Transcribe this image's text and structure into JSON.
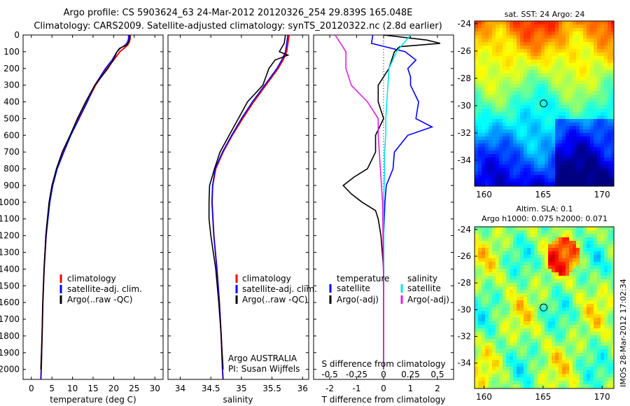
{
  "title_line1": "Argo profile: CS 5903624_63 24-Mar-2012 20120326_254 29.839S 165.048E",
  "title_line2": "Climatology: CARS2009. Satellite-adjusted climatology: synTS_20120322.nc (2.8d earlier)",
  "colors": {
    "climatology": "#ff0000",
    "satellite": "#0000ff",
    "argo": "#000000",
    "sal_satellite": "#00e5ee",
    "sal_argo": "#e020e0"
  },
  "depth_axis": {
    "ylim": [
      0,
      2060
    ],
    "ticks": [
      0,
      100,
      200,
      300,
      400,
      500,
      600,
      700,
      800,
      900,
      1000,
      1100,
      1200,
      1300,
      1400,
      1500,
      1600,
      1700,
      1800,
      1900,
      2000
    ],
    "tick_labels": [
      "0",
      "100",
      "200",
      "300",
      "400",
      "500",
      "600",
      "700",
      "800",
      "900",
      "1000",
      "1100",
      "1200",
      "1300",
      "1400",
      "1500",
      "1600",
      "1700",
      "1800",
      "1900",
      "2000"
    ]
  },
  "chart_data": [
    {
      "type": "line",
      "xlabel": "temperature (deg C)",
      "xlim": [
        -2,
        32
      ],
      "xticks": [
        0,
        5,
        10,
        15,
        20,
        25,
        30
      ],
      "xtick_labels": [
        "0",
        "5",
        "10",
        "15",
        "20",
        "25",
        "30"
      ],
      "legend": {
        "placement": "bottom-left",
        "entries": [
          "climatology",
          "satellite-adj. clim.",
          "Argo(..raw -QC)"
        ]
      },
      "series": [
        {
          "name": "climatology",
          "color": "#ff0000",
          "depth": [
            0,
            20,
            40,
            60,
            80,
            100,
            150,
            200,
            300,
            400,
            500,
            600,
            700,
            800,
            900,
            1000,
            1200,
            1400,
            1600,
            1800,
            2000,
            2060
          ],
          "values": [
            24,
            24,
            23.8,
            23.4,
            22.5,
            21.5,
            20,
            18.3,
            15.6,
            13.5,
            11.4,
            9.5,
            7.8,
            6.2,
            5.1,
            4.4,
            3.6,
            3.1,
            2.8,
            2.6,
            2.4,
            2.3
          ]
        },
        {
          "name": "satellite-adj. clim.",
          "color": "#0000ff",
          "depth": [
            0,
            20,
            40,
            60,
            80,
            100,
            150,
            200,
            300,
            400,
            500,
            600,
            700,
            800,
            900,
            1000,
            1200,
            1400,
            1600,
            1800,
            2000,
            2060
          ],
          "values": [
            23.6,
            23.6,
            23.4,
            22.8,
            21.6,
            20.8,
            19.6,
            18,
            15.4,
            13.6,
            11.6,
            9.6,
            7.9,
            6.3,
            5.2,
            4.5,
            3.6,
            3.1,
            2.8,
            2.6,
            2.4,
            2.3
          ]
        },
        {
          "name": "Argo(..raw -QC)",
          "color": "#000000",
          "depth": [
            0,
            20,
            40,
            60,
            80,
            100,
            150,
            200,
            300,
            400,
            500,
            600,
            700,
            800,
            900,
            1000,
            1100,
            1200,
            1400,
            1600,
            1800,
            2000
          ],
          "values": [
            23.9,
            23.9,
            23.7,
            23.2,
            21.4,
            20.8,
            19.9,
            18.6,
            15.4,
            13.2,
            11.2,
            9.4,
            7.5,
            6.1,
            5,
            4.3,
            3.9,
            3.5,
            3.1,
            2.8,
            2.6,
            2.3
          ]
        }
      ]
    },
    {
      "type": "line",
      "xlabel": "salinity",
      "xlim": [
        33.8,
        36.1
      ],
      "xticks": [
        34,
        34.5,
        35,
        35.5,
        36
      ],
      "xtick_labels": [
        "34",
        "34.5",
        "35",
        "35.5",
        "36"
      ],
      "legend": {
        "placement": "bottom-right",
        "entries": [
          "climatology",
          "satellite-adj. clim.",
          "Argo(..raw -QC)"
        ]
      },
      "annotation": [
        "Argo AUSTRALIA",
        "PI: Susan Wijffels"
      ],
      "series": [
        {
          "name": "climatology",
          "color": "#ff0000",
          "depth": [
            0,
            50,
            100,
            150,
            200,
            300,
            400,
            500,
            600,
            700,
            800,
            900,
            1000,
            1200,
            1400,
            1600,
            1800,
            2000,
            2060
          ],
          "values": [
            35.78,
            35.76,
            35.74,
            35.68,
            35.6,
            35.4,
            35.2,
            35.02,
            34.85,
            34.7,
            34.58,
            34.53,
            34.52,
            34.55,
            34.6,
            34.64,
            34.67,
            34.69,
            34.7
          ]
        },
        {
          "name": "satellite-adj. clim.",
          "color": "#0000ff",
          "depth": [
            0,
            50,
            100,
            150,
            200,
            300,
            400,
            500,
            600,
            700,
            800,
            900,
            1000,
            1200,
            1400,
            1600,
            1800,
            2000,
            2060
          ],
          "values": [
            35.76,
            35.74,
            35.72,
            35.66,
            35.58,
            35.38,
            35.18,
            35,
            34.84,
            34.69,
            34.57,
            34.53,
            34.52,
            34.55,
            34.6,
            34.64,
            34.67,
            34.69,
            34.7
          ]
        },
        {
          "name": "Argo(..raw -QC)",
          "color": "#000000",
          "depth": [
            0,
            50,
            100,
            120,
            150,
            200,
            300,
            400,
            500,
            600,
            700,
            800,
            900,
            1000,
            1100,
            1200,
            1400,
            1600,
            1800,
            2000
          ],
          "values": [
            35.72,
            35.7,
            35.62,
            35.76,
            35.55,
            35.45,
            35.35,
            35.1,
            34.95,
            34.8,
            34.65,
            34.56,
            34.48,
            34.47,
            34.47,
            34.5,
            34.58,
            34.63,
            34.67,
            34.7
          ]
        }
      ]
    },
    {
      "type": "line",
      "xlabel": "T difference from climatology",
      "xlabel_top": "S difference from climatology",
      "xlim": [
        -2.6,
        2.6
      ],
      "xticks": [
        -2,
        -1,
        0,
        1,
        2
      ],
      "xtick_labels": [
        "-2",
        "-1",
        "0",
        "1",
        "2"
      ],
      "s_ticks": [
        -0.5,
        -0.25,
        0,
        0.25,
        0.5
      ],
      "s_tick_labels": [
        "-0.5",
        "-0.25",
        "0",
        "0.25",
        "0.5"
      ],
      "legend": {
        "placement": "bottom",
        "headers": [
          "temperature",
          "salinity"
        ],
        "entries": [
          "satellite",
          "Argo(-adj)",
          "satellite",
          "Argo(-adj)"
        ]
      },
      "series": [
        {
          "name": "satellite",
          "color": "#0000ff",
          "depth": [
            0,
            50,
            100,
            150,
            200,
            250,
            300,
            400,
            500,
            550,
            600,
            700,
            800,
            900,
            1000,
            1200,
            1400,
            1600,
            1800,
            2000
          ],
          "values": [
            -0.4,
            -0.45,
            0.8,
            1.2,
            0.9,
            1,
            1,
            1.3,
            1.2,
            1.8,
            0.9,
            0.4,
            0.35,
            0.1,
            0.05,
            0,
            0,
            0,
            0,
            0
          ]
        },
        {
          "name": "Argo(-adj)",
          "color": "#000000",
          "depth": [
            0,
            30,
            50,
            70,
            100,
            150,
            200,
            300,
            400,
            500,
            600,
            700,
            800,
            850,
            900,
            950,
            1000,
            1050,
            1100,
            1200,
            1400,
            1600,
            1800,
            2000
          ],
          "values": [
            0,
            1.6,
            2.1,
            0.6,
            0.4,
            0.3,
            0.2,
            -0.2,
            -0.2,
            0,
            -0.3,
            -0.3,
            -0.6,
            -1.1,
            -1.5,
            -1.2,
            -0.8,
            -0.3,
            -0.2,
            -0.1,
            0,
            0,
            0,
            0
          ]
        },
        {
          "name": "satellite",
          "color": "#00e5ee",
          "depth": [
            0,
            100,
            200,
            300,
            400,
            500,
            600,
            700,
            800,
            1000,
            1500,
            2000
          ],
          "values": [
            0.25,
            0.12,
            0.05,
            0.04,
            0.03,
            0.02,
            0.02,
            0.01,
            0.01,
            0,
            0,
            0
          ]
        },
        {
          "name": "Argo(-adj)",
          "color": "#e020e0",
          "depth": [
            0,
            50,
            100,
            200,
            300,
            400,
            500,
            600,
            800,
            1000,
            1500,
            2000
          ],
          "values": [
            -0.45,
            -0.4,
            -0.35,
            -0.35,
            -0.3,
            -0.15,
            -0.05,
            -0.05,
            -0.03,
            -0.01,
            0,
            0
          ]
        }
      ]
    },
    {
      "type": "heatmap",
      "title": "sat. SST: 24  Argo: 24",
      "xticks": [
        160,
        165,
        170
      ],
      "yticks": [
        -24,
        -26,
        -28,
        -30,
        -32,
        -34
      ],
      "xlim": [
        159.2,
        171
      ],
      "ylim": [
        -35.9,
        -23.8
      ],
      "marker": {
        "lon": 165.048,
        "lat": -29.839
      }
    },
    {
      "type": "heatmap",
      "title_line1": "Altim. SLA: 0.1",
      "title_line2": "Argo h1000: 0.075 h2000: 0.071",
      "xticks": [
        160,
        165,
        170
      ],
      "yticks": [
        -24,
        -26,
        -28,
        -30,
        -32,
        -34
      ],
      "xlim": [
        159.2,
        171
      ],
      "ylim": [
        -35.9,
        -23.8
      ],
      "marker": {
        "lon": 165.048,
        "lat": -29.839
      }
    }
  ],
  "watermark": "IMOS 28-Mar-2012 17:02:34"
}
